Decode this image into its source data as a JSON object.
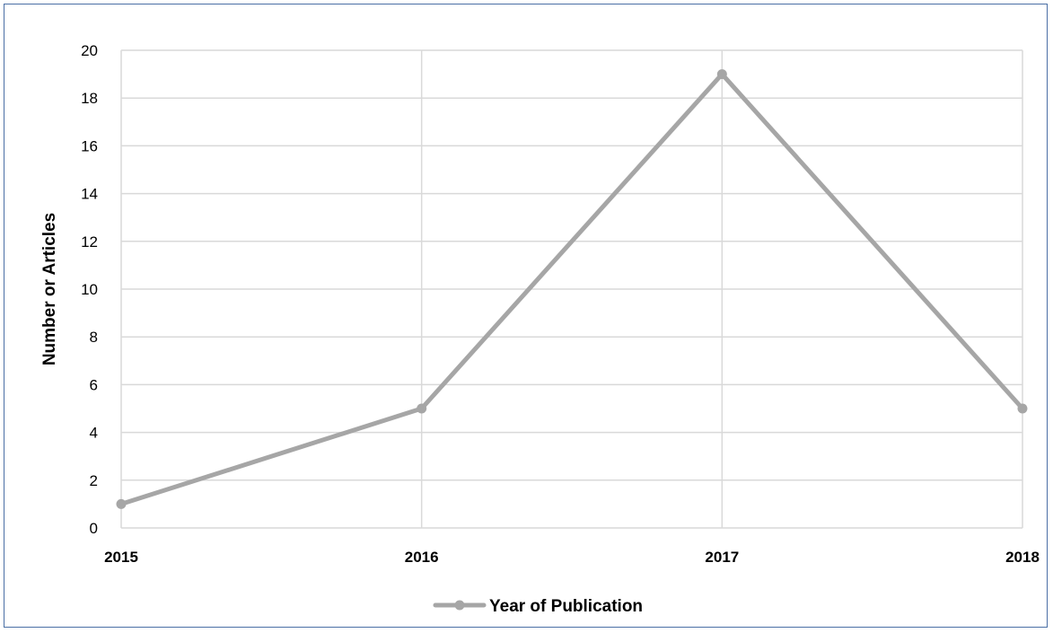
{
  "chart_data": {
    "type": "line",
    "title": "",
    "xlabel": "",
    "ylabel": "Number or Articles",
    "categories": [
      "2015",
      "2016",
      "2017",
      "2018"
    ],
    "series": [
      {
        "name": "Year of Publication",
        "values": [
          1,
          5,
          19,
          5
        ],
        "color": "#a6a6a6"
      }
    ],
    "ylim": [
      0,
      20
    ],
    "yticks": [
      "0",
      "2",
      "4",
      "6",
      "8",
      "10",
      "12",
      "14",
      "16",
      "18",
      "20"
    ],
    "grid": true,
    "legend_position": "bottom",
    "colors": {
      "line": "#a6a6a6",
      "grid": "#d9d9d9",
      "border": "#4a6fa5"
    }
  }
}
